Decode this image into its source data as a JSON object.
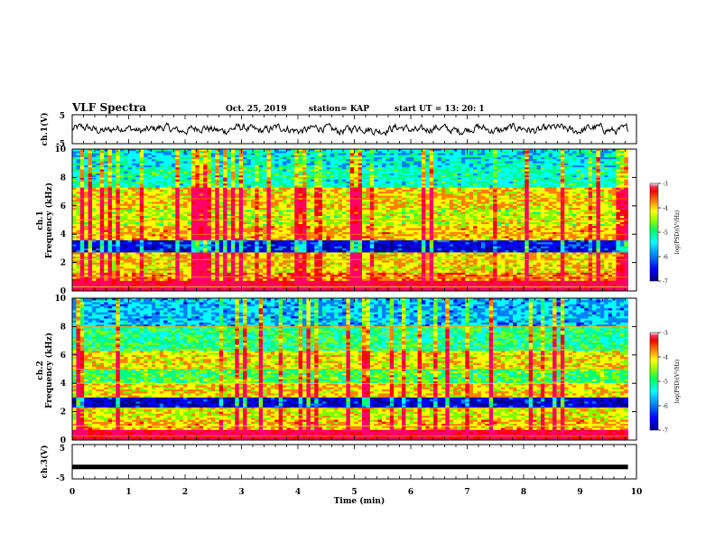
{
  "header": {
    "title": "VLF Spectra",
    "date": "Oct. 25, 2019",
    "station": "station= KAP",
    "start": "start  UT  =   13: 20: 1"
  },
  "axes": {
    "ch1_ylabel": "ch.1(V)",
    "ch3_ylabel": "ch.3(V)",
    "spec1_ylabel_1": "ch.1",
    "spec1_ylabel_2": "Frequency  (kHz)",
    "spec2_ylabel_1": "ch.2",
    "spec2_ylabel_2": "Frequency  (kHz)",
    "xlabel": "Time  (min)",
    "colorbar_label": "log(PSD)(V²/Hz)",
    "voltage_ticks": [
      "5",
      "-5"
    ],
    "freq_ticks": [
      "0",
      "2",
      "4",
      "6",
      "8",
      "10"
    ],
    "time_ticks": [
      "0",
      "1",
      "2",
      "3",
      "4",
      "5",
      "6",
      "7",
      "8",
      "9",
      "10"
    ],
    "colorbar_ticks": [
      "-3",
      "-4",
      "-5",
      "-6",
      "-7"
    ]
  },
  "colors": {
    "colormap": [
      "#00008b",
      "#0000ff",
      "#0080ff",
      "#00ffff",
      "#00ff80",
      "#80ff00",
      "#ffff00",
      "#ff8000",
      "#ff0000",
      "#ff0066",
      "#ffffff"
    ]
  },
  "chart_data": [
    {
      "type": "line",
      "panel": "ch.1 waveform",
      "ylabel": "ch.1(V)",
      "ylim": [
        -5,
        5
      ],
      "xlim": [
        0,
        10
      ],
      "x_span_min": 9.85,
      "description_values": "noisy waveform oscillating roughly between -2 and 2 V"
    },
    {
      "type": "heatmap",
      "panel": "ch.1 spectrogram",
      "ylabel": "ch.1 Frequency (kHz)",
      "ylim": [
        0,
        10
      ],
      "xlim": [
        0,
        10
      ],
      "color_range": [
        -7,
        -3
      ],
      "bands_khz": [
        {
          "f": 0.3,
          "level": -3.2
        },
        {
          "f": 1.0,
          "level": -4.0
        },
        {
          "f": 1.6,
          "level": -4.4
        },
        {
          "f": 2.2,
          "level": -4.3
        },
        {
          "f": 3.2,
          "level": -6.5
        },
        {
          "f": 4.0,
          "level": -4.2
        },
        {
          "f": 5.0,
          "level": -4.6
        },
        {
          "f": 6.5,
          "level": -4.3
        },
        {
          "f": 8.0,
          "level": -5.4
        },
        {
          "f": 9.5,
          "level": -5.6
        }
      ]
    },
    {
      "type": "heatmap",
      "panel": "ch.2 spectrogram",
      "ylabel": "ch.2 Frequency (kHz)",
      "ylim": [
        0,
        10
      ],
      "xlim": [
        0,
        10
      ],
      "color_range": [
        -7,
        -3
      ],
      "bands_khz": [
        {
          "f": 0.3,
          "level": -3.3
        },
        {
          "f": 1.0,
          "level": -4.2
        },
        {
          "f": 1.8,
          "level": -4.5
        },
        {
          "f": 2.7,
          "level": -6.6
        },
        {
          "f": 3.4,
          "level": -4.3
        },
        {
          "f": 4.5,
          "level": -5.0
        },
        {
          "f": 5.5,
          "level": -4.4
        },
        {
          "f": 7.0,
          "level": -5.2
        },
        {
          "f": 9.0,
          "level": -5.8
        }
      ]
    },
    {
      "type": "line",
      "panel": "ch.3 waveform",
      "ylabel": "ch.3(V)",
      "ylim": [
        -5,
        5
      ],
      "xlim": [
        0,
        10
      ],
      "x_span_min": 9.85,
      "constant_value": -1.5
    }
  ]
}
